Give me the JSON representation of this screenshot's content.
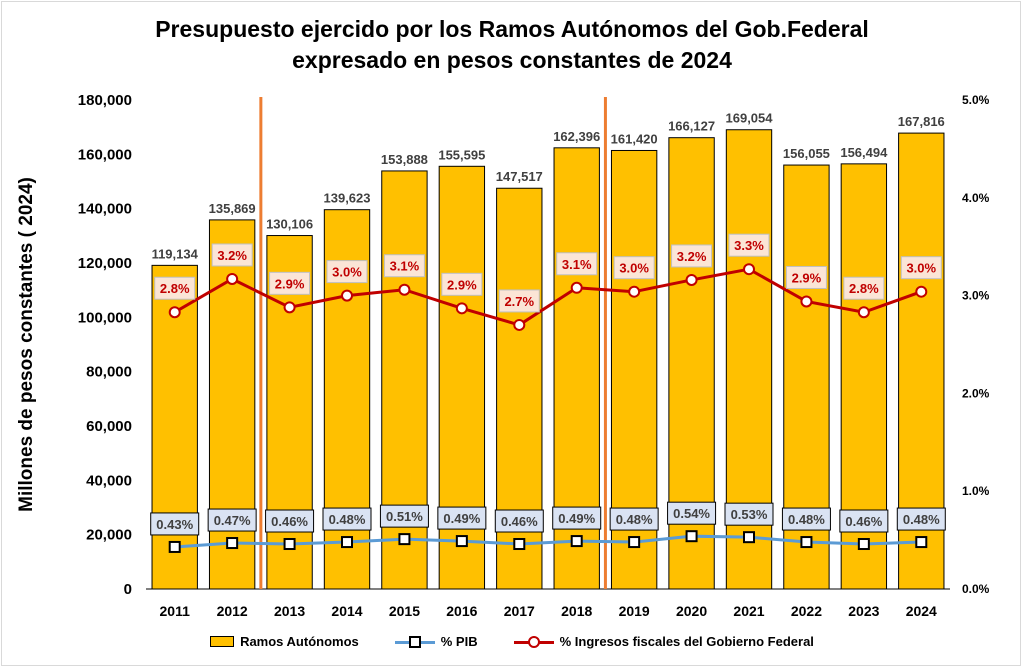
{
  "chart_data": {
    "type": "bar+line",
    "title_lines": [
      "Presupuesto ejercido por los Ramos Autónomos del Gob.Federal",
      "expresado en pesos constantes de 2024"
    ],
    "ylabel": "Millones de pesos constantes ( 2024)",
    "ylim": [
      0,
      180000
    ],
    "yticks": [
      "0",
      "20,000",
      "40,000",
      "60,000",
      "80,000",
      "100,000",
      "120,000",
      "140,000",
      "160,000",
      "180,000"
    ],
    "y2lim": [
      0,
      5
    ],
    "y2ticks": [
      "0.0%",
      "1.0%",
      "2.0%",
      "3.0%",
      "4.0%",
      "5.0%"
    ],
    "categories": [
      "2011",
      "2012",
      "2013",
      "2014",
      "2015",
      "2016",
      "2017",
      "2018",
      "2019",
      "2020",
      "2021",
      "2022",
      "2023",
      "2024"
    ],
    "vertical_markers_after": [
      "2012",
      "2018"
    ],
    "series": [
      {
        "name": "Ramos Autónomos",
        "type": "bar",
        "axis": "left",
        "color": "#ffc000",
        "values": [
          119134,
          135869,
          130106,
          139623,
          153888,
          155595,
          147517,
          162396,
          161420,
          166127,
          169054,
          156055,
          156494,
          167816
        ],
        "labels": [
          "119,134",
          "135,869",
          "130,106",
          "139,623",
          "153,888",
          "155,595",
          "147,517",
          "162,396",
          "161,420",
          "166,127",
          "169,054",
          "156,055",
          "156,494",
          "167,816"
        ]
      },
      {
        "name": "% PIB",
        "type": "line",
        "axis": "right",
        "color": "#5b9bd5",
        "values": [
          0.43,
          0.47,
          0.46,
          0.48,
          0.51,
          0.49,
          0.46,
          0.49,
          0.48,
          0.54,
          0.53,
          0.48,
          0.46,
          0.48
        ],
        "labels": [
          "0.43%",
          "0.47%",
          "0.46%",
          "0.48%",
          "0.51%",
          "0.49%",
          "0.46%",
          "0.49%",
          "0.48%",
          "0.54%",
          "0.53%",
          "0.48%",
          "0.46%",
          "0.48%"
        ]
      },
      {
        "name": "% Ingresos fiscales del Gobierno Federal",
        "type": "line",
        "axis": "right",
        "color": "#c00000",
        "values": [
          2.83,
          3.17,
          2.88,
          3.0,
          3.06,
          2.87,
          2.7,
          3.08,
          3.04,
          3.16,
          3.27,
          2.94,
          2.83,
          3.04
        ],
        "labels": [
          "2.8%",
          "3.2%",
          "2.9%",
          "3.0%",
          "3.1%",
          "2.9%",
          "2.7%",
          "3.1%",
          "3.0%",
          "3.2%",
          "3.3%",
          "2.9%",
          "2.8%",
          "3.0%"
        ]
      }
    ],
    "colors": {
      "marker_line": "#ed7d31",
      "label_box_bg": "#dae3f3",
      "red_box_bg": "#fbe5d6"
    }
  }
}
